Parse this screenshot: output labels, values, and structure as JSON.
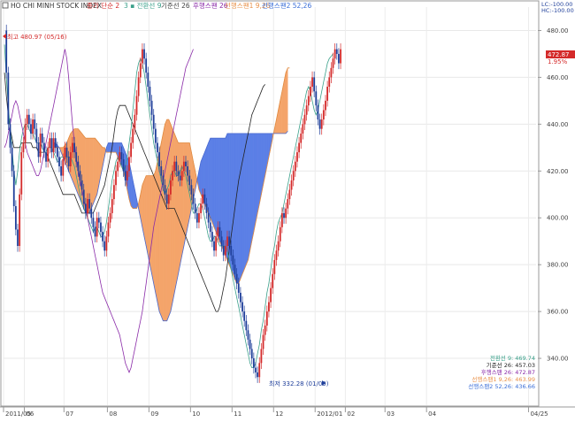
{
  "legend": {
    "name": "HO CHI MINH STOCK INDEX",
    "price": "종가 단순 2",
    "tenkan": "3 ▪ 전환선 9",
    "kijun": "기준선 26",
    "chikou": "후행스팬 26",
    "spanA": "선행스팬1 9,26",
    "spanB": "선행스팬2 52,26"
  },
  "topright": {
    "lc": "LC:-100.00",
    "hc": "HC:-100.00"
  },
  "annotations": {
    "high": "최고 480.97 (05/16)",
    "low": "최저 332.28 (01/09)"
  },
  "last": {
    "value": "472.87",
    "change": "1.95%"
  },
  "readout": [
    {
      "text": "전환선 9: 469.74",
      "color": "#3aa08a"
    },
    {
      "text": "기준선 26: 457.03",
      "color": "#222222"
    },
    {
      "text": "후행스팬 26: 472.87",
      "color": "#8a2aa8"
    },
    {
      "text": "선행스팬1 9,26: 463.99",
      "color": "#e9924a"
    },
    {
      "text": "선행스팬2 52,26: 436.66",
      "color": "#3b6fd8"
    }
  ],
  "colors": {
    "bull": "#d42a2a",
    "bear": "#1f3f9a",
    "tenkan": "#3aa08a",
    "kijun": "#222222",
    "chikou": "#8a2aa8",
    "cloud_bull": "#f4a46a",
    "cloud_bear": "#5b7fe6",
    "last_bg": "#d42a2a"
  },
  "chart_data": {
    "type": "candlestick",
    "title": "HO CHI MINH STOCK INDEX",
    "ylim": [
      320,
      490
    ],
    "yticks": [
      340,
      360,
      380,
      400,
      420,
      440,
      460,
      480
    ],
    "xticks": [
      {
        "label": "2011/05",
        "i": 0
      },
      {
        "label": "06",
        "i": 11
      },
      {
        "label": "07",
        "i": 32
      },
      {
        "label": "08",
        "i": 55
      },
      {
        "label": "09",
        "i": 77
      },
      {
        "label": "10",
        "i": 99
      },
      {
        "label": "11",
        "i": 121
      },
      {
        "label": "12",
        "i": 143
      },
      {
        "label": "2012/01",
        "i": 165
      },
      {
        "label": "02",
        "i": 181
      },
      {
        "label": "03",
        "i": 202
      },
      {
        "label": "04",
        "i": 224
      },
      {
        "label": "04/25",
        "i": 278
      }
    ],
    "n_slots": 282,
    "close": [
      480,
      462,
      440,
      430,
      420,
      405,
      395,
      388,
      410,
      428,
      432,
      440,
      444,
      440,
      436,
      442,
      438,
      432,
      426,
      436,
      432,
      428,
      424,
      430,
      434,
      428,
      434,
      430,
      426,
      422,
      418,
      425,
      430,
      426,
      422,
      428,
      432,
      428,
      424,
      420,
      416,
      412,
      406,
      402,
      408,
      404,
      400,
      396,
      392,
      400,
      398,
      394,
      390,
      386,
      392,
      398,
      402,
      408,
      414,
      420,
      424,
      428,
      425,
      420,
      416,
      420,
      426,
      432,
      438,
      444,
      452,
      460,
      466,
      472,
      468,
      462,
      456,
      450,
      444,
      438,
      432,
      428,
      422,
      418,
      414,
      410,
      406,
      410,
      416,
      420,
      424,
      420,
      418,
      416,
      420,
      424,
      422,
      418,
      414,
      410,
      406,
      402,
      398,
      402,
      406,
      410,
      406,
      402,
      398,
      394,
      390,
      386,
      392,
      396,
      392,
      388,
      384,
      388,
      392,
      388,
      384,
      380,
      376,
      372,
      368,
      364,
      360,
      356,
      352,
      348,
      344,
      340,
      336,
      334,
      332,
      338,
      344,
      350,
      354,
      360,
      364,
      370,
      376,
      382,
      386,
      390,
      396,
      402,
      400,
      404,
      408,
      412,
      416,
      420,
      424,
      428,
      432,
      436,
      440,
      444,
      448,
      452,
      456,
      460,
      454,
      448,
      442,
      438,
      442,
      446,
      450,
      456,
      460,
      464,
      468,
      472,
      470,
      466,
      472
    ],
    "tenkan": [
      474,
      460,
      448,
      438,
      430,
      420,
      414,
      420,
      428,
      434,
      438,
      440,
      440,
      438,
      436,
      436,
      434,
      432,
      432,
      432,
      430,
      428,
      428,
      430,
      430,
      430,
      428,
      426,
      424,
      424,
      426,
      426,
      426,
      426,
      426,
      426,
      424,
      422,
      418,
      414,
      410,
      406,
      404,
      402,
      400,
      398,
      396,
      394,
      396,
      396,
      394,
      392,
      392,
      394,
      398,
      404,
      410,
      416,
      420,
      424,
      426,
      424,
      422,
      420,
      422,
      426,
      432,
      438,
      446,
      454,
      462,
      466,
      468,
      466,
      462,
      456,
      450,
      444,
      438,
      432,
      428,
      424,
      420,
      416,
      412,
      410,
      412,
      414,
      418,
      420,
      420,
      418,
      418,
      420,
      422,
      420,
      418,
      414,
      410,
      406,
      402,
      402,
      404,
      406,
      406,
      404,
      400,
      396,
      392,
      390,
      390,
      392,
      392,
      390,
      388,
      388,
      388,
      388,
      386,
      382,
      378,
      374,
      370,
      366,
      362,
      358,
      354,
      350,
      346,
      342,
      338,
      336,
      336,
      338,
      342,
      346,
      352,
      356,
      362,
      368,
      372,
      378,
      384,
      388,
      394,
      398,
      400,
      402,
      406,
      410,
      414,
      418,
      422,
      426,
      430,
      434,
      438,
      442,
      446,
      450,
      454,
      456,
      454,
      450,
      446,
      444,
      446,
      450,
      454,
      458,
      462,
      466,
      468,
      469,
      470
    ],
    "kijun": [
      462,
      452,
      444,
      438,
      434,
      430,
      430,
      430,
      430,
      432,
      432,
      432,
      432,
      432,
      432,
      430,
      430,
      430,
      428,
      428,
      428,
      428,
      428,
      426,
      424,
      422,
      420,
      418,
      416,
      414,
      412,
      410,
      410,
      410,
      410,
      410,
      410,
      410,
      408,
      406,
      404,
      402,
      402,
      402,
      402,
      402,
      402,
      402,
      404,
      406,
      408,
      410,
      412,
      414,
      418,
      422,
      426,
      430,
      436,
      442,
      446,
      448,
      448,
      448,
      448,
      446,
      444,
      442,
      440,
      438,
      436,
      434,
      432,
      430,
      428,
      426,
      424,
      422,
      420,
      418,
      416,
      414,
      412,
      410,
      408,
      406,
      404,
      404,
      404,
      404,
      404,
      402,
      400,
      398,
      396,
      394,
      392,
      390,
      388,
      386,
      384,
      382,
      380,
      378,
      376,
      374,
      372,
      370,
      368,
      366,
      364,
      362,
      360,
      360,
      362,
      366,
      370,
      374,
      380,
      386,
      392,
      398,
      404,
      410,
      416,
      420,
      424,
      428,
      432,
      436,
      440,
      444,
      446,
      448,
      450,
      452,
      454,
      456,
      457
    ],
    "chikou": [
      430,
      432,
      436,
      440,
      444,
      448,
      450,
      448,
      444,
      440,
      436,
      432,
      428,
      426,
      424,
      422,
      420,
      418,
      418,
      420,
      424,
      428,
      432,
      436,
      440,
      444,
      448,
      452,
      456,
      460,
      464,
      468,
      472,
      468,
      460,
      450,
      440,
      432,
      426,
      420,
      416,
      412,
      408,
      404,
      400,
      396,
      392,
      388,
      384,
      380,
      376,
      372,
      368,
      366,
      364,
      362,
      360,
      358,
      356,
      354,
      352,
      350,
      346,
      342,
      338,
      336,
      334,
      336,
      340,
      344,
      348,
      352,
      356,
      360,
      366,
      372,
      378,
      384,
      390,
      396,
      400,
      404,
      408,
      412,
      416,
      420,
      424,
      428,
      432,
      436,
      440,
      444,
      448,
      452,
      456,
      460,
      464,
      466,
      468,
      470,
      472
    ],
    "spanA": [
      430,
      430,
      430,
      430,
      430,
      430,
      431,
      432,
      434,
      436,
      437,
      438,
      438,
      438,
      437,
      436,
      435,
      434,
      434,
      434,
      434,
      434,
      434,
      433,
      432,
      431,
      430,
      430,
      428,
      428,
      428,
      428,
      428,
      428,
      426,
      424,
      422,
      420,
      416,
      412,
      408,
      405,
      404,
      404,
      404,
      406,
      410,
      414,
      416,
      418,
      418,
      418,
      418,
      418,
      420,
      424,
      428,
      432,
      436,
      440,
      442,
      442,
      440,
      438,
      436,
      434,
      432,
      432,
      432,
      432,
      432,
      432,
      432,
      428,
      424,
      420,
      416,
      412,
      410,
      408,
      406,
      404,
      402,
      400,
      398,
      396,
      394,
      392,
      390,
      388,
      386,
      384,
      382,
      380,
      378,
      376,
      374,
      372,
      372,
      374,
      376,
      378,
      380,
      382,
      386,
      390,
      394,
      398,
      402,
      406,
      410,
      414,
      418,
      422,
      426,
      430,
      434,
      438,
      442,
      446,
      450,
      454,
      458,
      462,
      464,
      464
    ],
    "spanB": [
      432,
      432,
      431,
      430,
      428,
      426,
      424,
      422,
      420,
      418,
      416,
      414,
      412,
      410,
      408,
      406,
      404,
      402,
      402,
      402,
      404,
      406,
      408,
      410,
      414,
      418,
      422,
      426,
      430,
      432,
      432,
      432,
      432,
      432,
      432,
      432,
      432,
      430,
      428,
      426,
      424,
      420,
      416,
      412,
      408,
      404,
      400,
      396,
      392,
      388,
      384,
      380,
      376,
      372,
      368,
      364,
      360,
      358,
      356,
      356,
      356,
      358,
      360,
      364,
      368,
      372,
      376,
      380,
      384,
      388,
      392,
      396,
      400,
      404,
      408,
      412,
      416,
      420,
      424,
      426,
      428,
      430,
      432,
      434,
      434,
      434,
      434,
      434,
      434,
      434,
      434,
      434,
      436,
      436,
      436,
      436,
      436,
      436,
      436,
      436,
      436,
      436,
      436,
      436,
      436,
      436,
      436,
      436,
      436,
      436,
      436,
      436,
      436,
      436,
      436,
      436,
      436,
      436,
      436,
      436,
      436,
      436,
      436,
      436,
      437
    ]
  }
}
